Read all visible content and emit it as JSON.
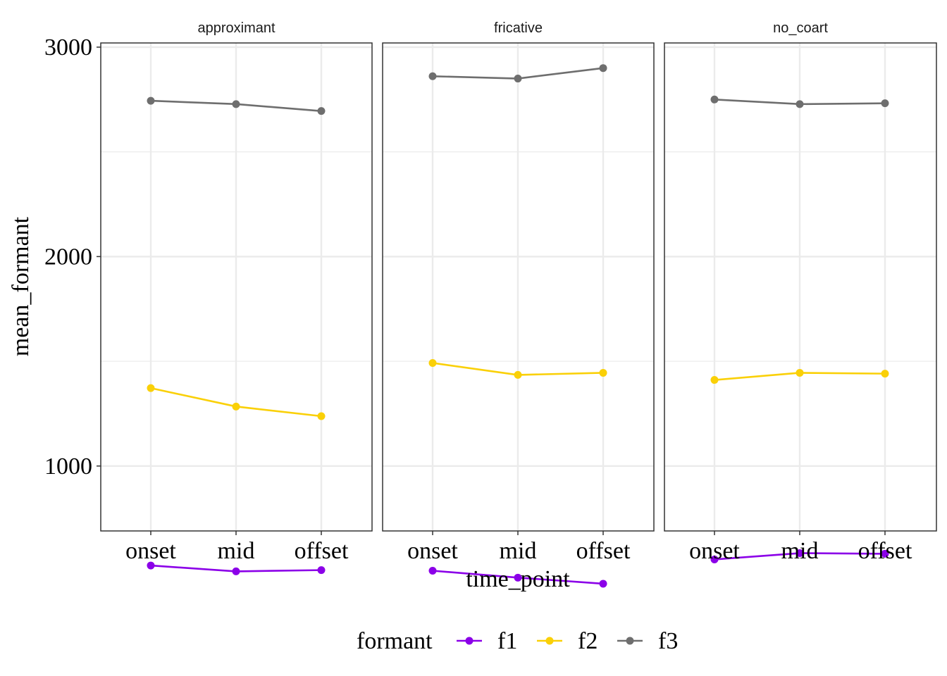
{
  "chart_data": {
    "type": "line",
    "xlabel": "time_point",
    "ylabel": "mean_formant",
    "categories": [
      "onset",
      "mid",
      "offset"
    ],
    "yticks": [
      1000,
      2000,
      3000
    ],
    "ylim": [
      690,
      3020
    ],
    "grid": true,
    "legend": {
      "title": "formant",
      "position": "bottom",
      "entries": [
        "f1",
        "f2",
        "f3"
      ]
    },
    "colors": {
      "f1": "#8b00e8",
      "f2": "#fad007",
      "f3": "#6e6e6e"
    },
    "facets": [
      {
        "title": "approximant",
        "series": [
          {
            "name": "f1",
            "values": [
              525,
              497,
              503
            ]
          },
          {
            "name": "f2",
            "values": [
              1372,
              1284,
              1238
            ]
          },
          {
            "name": "f3",
            "values": [
              2744,
              2728,
              2695
            ]
          }
        ]
      },
      {
        "title": "fricative",
        "series": [
          {
            "name": "f1",
            "values": [
              500,
              467,
              438
            ]
          },
          {
            "name": "f2",
            "values": [
              1492,
              1435,
              1445
            ]
          },
          {
            "name": "f3",
            "values": [
              2861,
              2850,
              2900
            ]
          }
        ]
      },
      {
        "title": "no_coart",
        "series": [
          {
            "name": "f1",
            "values": [
              554,
              584,
              581
            ]
          },
          {
            "name": "f2",
            "values": [
              1411,
              1445,
              1441
            ]
          },
          {
            "name": "f3",
            "values": [
              2750,
              2728,
              2732
            ]
          }
        ]
      }
    ]
  }
}
